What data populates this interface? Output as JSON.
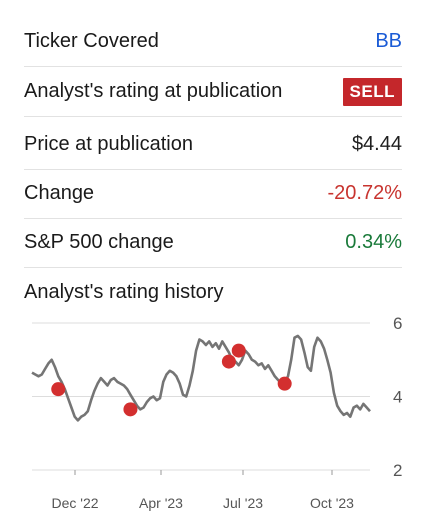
{
  "summary": {
    "ticker_label": "Ticker Covered",
    "ticker_value": "BB",
    "rating_label": "Analyst's rating at publication",
    "rating_value": "SELL",
    "price_label": "Price at publication",
    "price_value": "$4.44",
    "change_label": "Change",
    "change_value": "-20.72%",
    "sp_label": "S&P 500 change",
    "sp_value": "0.34%"
  },
  "colors": {
    "link": "#1a5bd6",
    "sell_badge": "#c4272b",
    "negative": "#c8342f",
    "positive": "#1a7a3a",
    "line": "#757575",
    "marker": "#d32f2f"
  },
  "history": {
    "title": "Analyst's rating history"
  },
  "chart_data": {
    "type": "line",
    "ylim": [
      2,
      6
    ],
    "yticks": [
      "6",
      "4",
      "2"
    ],
    "xticks": [
      "Dec '22",
      "Apr '23",
      "Jul '23",
      "Oct '23"
    ],
    "grid": true,
    "series": [
      {
        "values": [
          [
            0,
            4.65
          ],
          [
            1,
            4.6
          ],
          [
            2,
            4.55
          ],
          [
            3,
            4.6
          ],
          [
            4,
            4.75
          ],
          [
            5,
            4.9
          ],
          [
            6,
            5.0
          ],
          [
            7,
            4.8
          ],
          [
            8,
            4.55
          ],
          [
            9,
            4.4
          ],
          [
            10,
            4.2
          ],
          [
            11,
            3.95
          ],
          [
            12,
            3.7
          ],
          [
            13,
            3.45
          ],
          [
            14,
            3.35
          ],
          [
            15,
            3.45
          ],
          [
            16,
            3.5
          ],
          [
            17,
            3.6
          ],
          [
            18,
            3.9
          ],
          [
            19,
            4.15
          ],
          [
            20,
            4.35
          ],
          [
            21,
            4.5
          ],
          [
            22,
            4.4
          ],
          [
            23,
            4.3
          ],
          [
            24,
            4.45
          ],
          [
            25,
            4.5
          ],
          [
            26,
            4.4
          ],
          [
            27,
            4.35
          ],
          [
            28,
            4.3
          ],
          [
            29,
            4.2
          ],
          [
            30,
            4.05
          ],
          [
            31,
            3.9
          ],
          [
            32,
            3.75
          ],
          [
            33,
            3.65
          ],
          [
            34,
            3.7
          ],
          [
            35,
            3.85
          ],
          [
            36,
            3.95
          ],
          [
            37,
            4.0
          ],
          [
            38,
            3.9
          ],
          [
            39,
            3.95
          ],
          [
            40,
            4.4
          ],
          [
            41,
            4.6
          ],
          [
            42,
            4.7
          ],
          [
            43,
            4.65
          ],
          [
            44,
            4.55
          ],
          [
            45,
            4.35
          ],
          [
            46,
            4.05
          ],
          [
            47,
            4.0
          ],
          [
            48,
            4.3
          ],
          [
            49,
            4.7
          ],
          [
            50,
            5.25
          ],
          [
            51,
            5.55
          ],
          [
            52,
            5.5
          ],
          [
            53,
            5.4
          ],
          [
            54,
            5.5
          ],
          [
            55,
            5.35
          ],
          [
            56,
            5.45
          ],
          [
            57,
            5.3
          ],
          [
            58,
            5.5
          ],
          [
            59,
            5.35
          ],
          [
            60,
            5.2
          ],
          [
            61,
            5.0
          ],
          [
            62,
            4.95
          ],
          [
            63,
            4.85
          ],
          [
            64,
            5.0
          ],
          [
            65,
            5.25
          ],
          [
            66,
            5.15
          ],
          [
            67,
            5.0
          ],
          [
            68,
            4.95
          ],
          [
            69,
            4.85
          ],
          [
            70,
            4.9
          ],
          [
            71,
            4.75
          ],
          [
            72,
            4.85
          ],
          [
            73,
            4.7
          ],
          [
            74,
            4.55
          ],
          [
            75,
            4.45
          ],
          [
            76,
            4.35
          ],
          [
            77,
            4.4
          ],
          [
            78,
            4.55
          ],
          [
            79,
            5.0
          ],
          [
            80,
            5.6
          ],
          [
            81,
            5.65
          ],
          [
            82,
            5.55
          ],
          [
            83,
            5.2
          ],
          [
            84,
            4.8
          ],
          [
            85,
            4.7
          ],
          [
            86,
            5.35
          ],
          [
            87,
            5.6
          ],
          [
            88,
            5.5
          ],
          [
            89,
            5.3
          ],
          [
            90,
            5.0
          ],
          [
            91,
            4.65
          ],
          [
            92,
            4.1
          ],
          [
            93,
            3.75
          ],
          [
            94,
            3.6
          ],
          [
            95,
            3.5
          ],
          [
            96,
            3.55
          ],
          [
            97,
            3.45
          ],
          [
            98,
            3.7
          ],
          [
            99,
            3.75
          ],
          [
            100,
            3.65
          ],
          [
            101,
            3.8
          ],
          [
            102,
            3.7
          ],
          [
            103,
            3.6
          ]
        ]
      }
    ],
    "markers": [
      {
        "x": 8,
        "y": 4.2
      },
      {
        "x": 30,
        "y": 3.65
      },
      {
        "x": 60,
        "y": 4.95
      },
      {
        "x": 63,
        "y": 5.25
      },
      {
        "x": 77,
        "y": 4.35
      }
    ]
  }
}
